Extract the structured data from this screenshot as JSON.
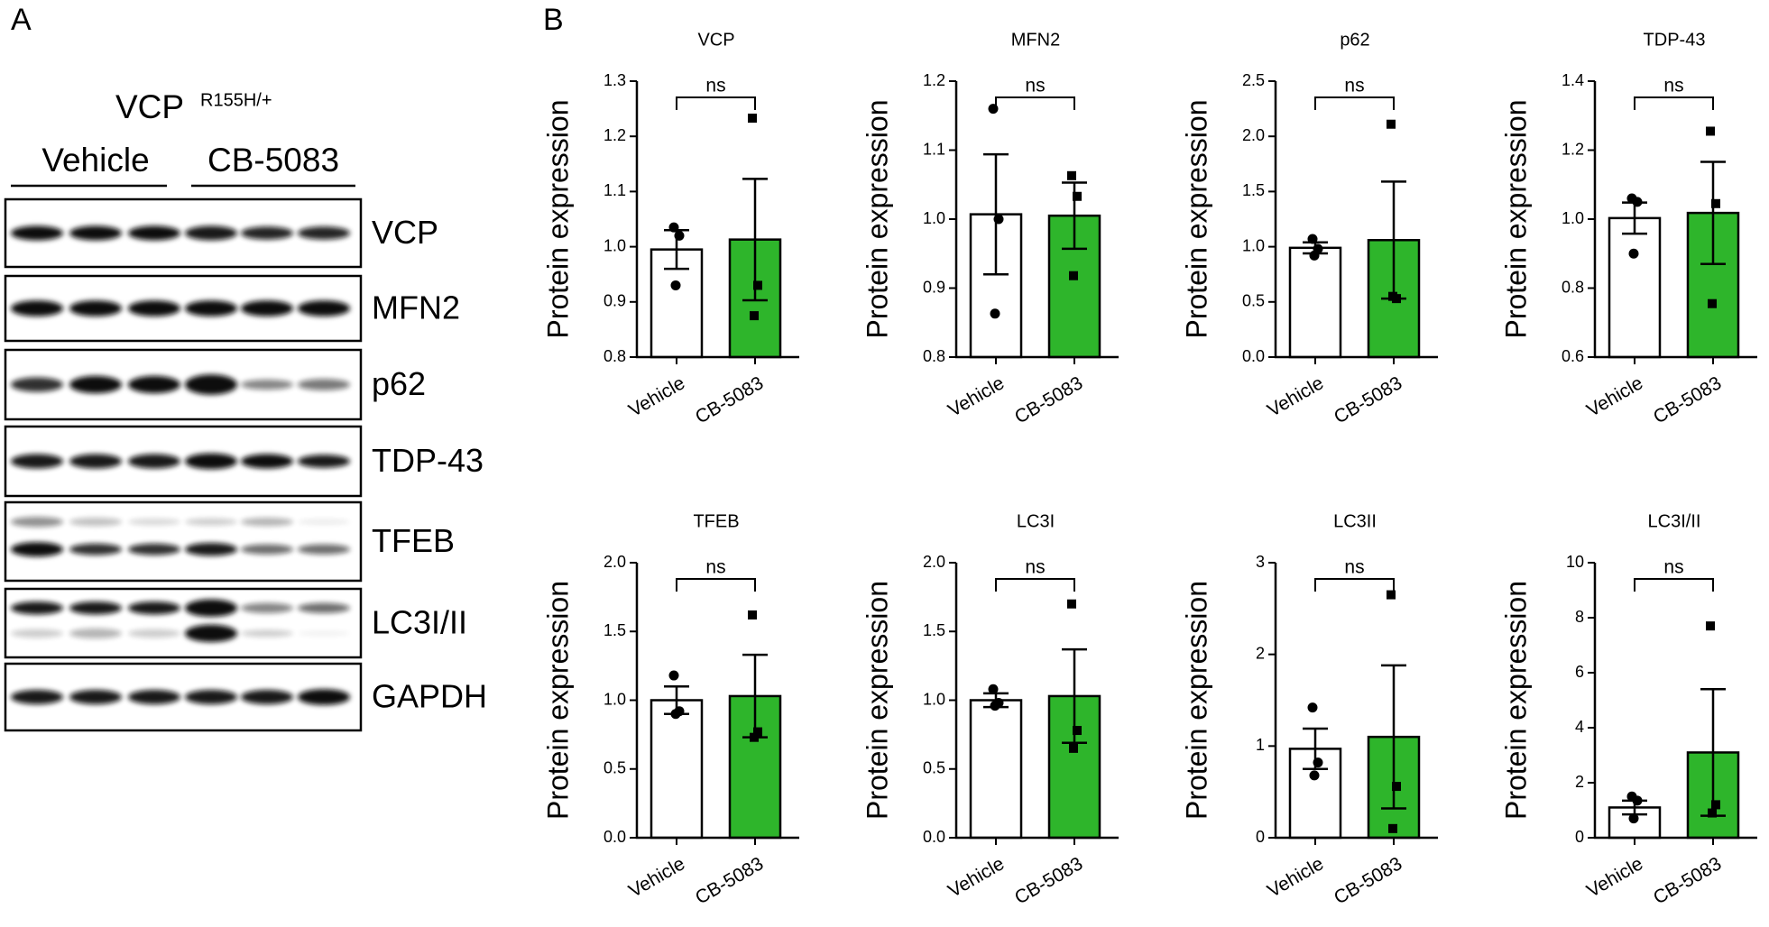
{
  "blot": {
    "panel_label": "A",
    "genotype": "VCP",
    "allele": "R155H/+",
    "groups": [
      "Vehicle",
      "CB-5083"
    ],
    "proteins": [
      "VCP",
      "MFN2",
      "p62",
      "TDP-43",
      "TFEB",
      "LC3I/II",
      "GAPDH"
    ]
  },
  "charts_panel_label": "B",
  "chart_data": [
    {
      "type": "bar",
      "title": "VCP",
      "y_label": "Protein expression",
      "annotation": "ns",
      "categories": [
        "Vehicle",
        "CB-5083"
      ],
      "colors": [
        "#ffffff",
        "#2eb52b"
      ],
      "values": [
        0.995,
        1.013
      ],
      "errors": [
        0.035,
        0.11
      ],
      "points": [
        [
          1.035,
          1.02,
          0.93
        ],
        [
          1.233,
          0.93,
          0.875
        ]
      ],
      "ylim": [
        0.8,
        1.3
      ],
      "yticks": [
        0.8,
        0.9,
        {
          "value": 1.0,
          "label": "1.0"
        },
        1.1,
        1.2,
        1.3
      ]
    },
    {
      "type": "bar",
      "title": "MFN2",
      "y_label": "Protein expression",
      "annotation": "ns",
      "categories": [
        "Vehicle",
        "CB-5083"
      ],
      "colors": [
        "#ffffff",
        "#2eb52b"
      ],
      "values": [
        1.007,
        1.005
      ],
      "errors": [
        0.087,
        0.048
      ],
      "points": [
        [
          1.16,
          1.0,
          0.863
        ],
        [
          1.063,
          1.033,
          0.918
        ]
      ],
      "ylim": [
        0.8,
        1.2
      ],
      "yticks": [
        0.8,
        0.9,
        {
          "value": 1.0,
          "label": "1.0"
        },
        1.1,
        1.2
      ]
    },
    {
      "type": "bar",
      "title": "p62",
      "y_label": "Protein expression",
      "annotation": "ns",
      "categories": [
        "Vehicle",
        "CB-5083"
      ],
      "colors": [
        "#ffffff",
        "#2eb52b"
      ],
      "values": [
        0.99,
        1.06
      ],
      "errors": [
        0.05,
        0.53
      ],
      "points": [
        [
          1.07,
          0.98,
          0.92
        ],
        [
          2.11,
          0.53,
          0.55
        ]
      ],
      "ylim": [
        0,
        2.5
      ],
      "yticks": [
        {
          "value": 0,
          "label": "0.0"
        },
        0.5,
        {
          "value": 1.0,
          "label": "1.0"
        },
        1.5,
        {
          "value": 2.0,
          "label": "2.0"
        },
        2.5
      ]
    },
    {
      "type": "bar",
      "title": "TDP-43",
      "y_label": "Protein expression",
      "annotation": "ns",
      "categories": [
        "Vehicle",
        "CB-5083"
      ],
      "colors": [
        "#ffffff",
        "#2eb52b"
      ],
      "values": [
        1.003,
        1.018
      ],
      "errors": [
        0.045,
        0.148
      ],
      "points": [
        [
          1.06,
          1.05,
          0.9
        ],
        [
          1.255,
          1.045,
          0.755
        ]
      ],
      "ylim": [
        0.6,
        1.4
      ],
      "yticks": [
        0.6,
        0.8,
        {
          "value": 1.0,
          "label": "1.0"
        },
        1.2,
        1.4
      ]
    },
    {
      "type": "bar",
      "title": "TFEB",
      "y_label": "Protein expression",
      "annotation": "ns",
      "categories": [
        "Vehicle",
        "CB-5083"
      ],
      "colors": [
        "#ffffff",
        "#2eb52b"
      ],
      "values": [
        1.0,
        1.03
      ],
      "errors": [
        0.1,
        0.3
      ],
      "points": [
        [
          1.18,
          0.92,
          0.9
        ],
        [
          1.62,
          0.77,
          0.73
        ]
      ],
      "ylim": [
        0,
        2.0
      ],
      "yticks": [
        {
          "value": 0,
          "label": "0.0"
        },
        0.5,
        {
          "value": 1.0,
          "label": "1.0"
        },
        1.5,
        {
          "value": 2.0,
          "label": "2.0"
        }
      ]
    },
    {
      "type": "bar",
      "title": "LC3I",
      "y_label": "Protein expression",
      "annotation": "ns",
      "categories": [
        "Vehicle",
        "CB-5083"
      ],
      "colors": [
        "#ffffff",
        "#2eb52b"
      ],
      "values": [
        1.0,
        1.03
      ],
      "errors": [
        0.05,
        0.34
      ],
      "points": [
        [
          1.08,
          0.98,
          0.96
        ],
        [
          1.7,
          0.78,
          0.65
        ]
      ],
      "ylim": [
        0,
        2.0
      ],
      "yticks": [
        {
          "value": 0,
          "label": "0.0"
        },
        0.5,
        {
          "value": 1.0,
          "label": "1.0"
        },
        1.5,
        {
          "value": 2.0,
          "label": "2.0"
        }
      ]
    },
    {
      "type": "bar",
      "title": "LC3II",
      "y_label": "Protein expression",
      "annotation": "ns",
      "categories": [
        "Vehicle",
        "CB-5083"
      ],
      "colors": [
        "#ffffff",
        "#2eb52b"
      ],
      "values": [
        0.97,
        1.1
      ],
      "errors": [
        0.22,
        0.78
      ],
      "points": [
        [
          1.42,
          0.82,
          0.68
        ],
        [
          2.65,
          0.56,
          0.1
        ]
      ],
      "ylim": [
        0,
        3
      ],
      "yticks": [
        0,
        1,
        2,
        3
      ]
    },
    {
      "type": "bar",
      "title": "LC3I/II",
      "y_label": "Protein expression",
      "annotation": "ns",
      "categories": [
        "Vehicle",
        "CB-5083"
      ],
      "colors": [
        "#ffffff",
        "#2eb52b"
      ],
      "values": [
        1.1,
        3.1
      ],
      "errors": [
        0.25,
        2.3
      ],
      "points": [
        [
          1.5,
          1.35,
          0.7
        ],
        [
          7.7,
          1.2,
          0.9
        ]
      ],
      "ylim": [
        0,
        10
      ],
      "yticks": [
        0,
        2,
        4,
        6,
        8,
        10
      ]
    }
  ]
}
